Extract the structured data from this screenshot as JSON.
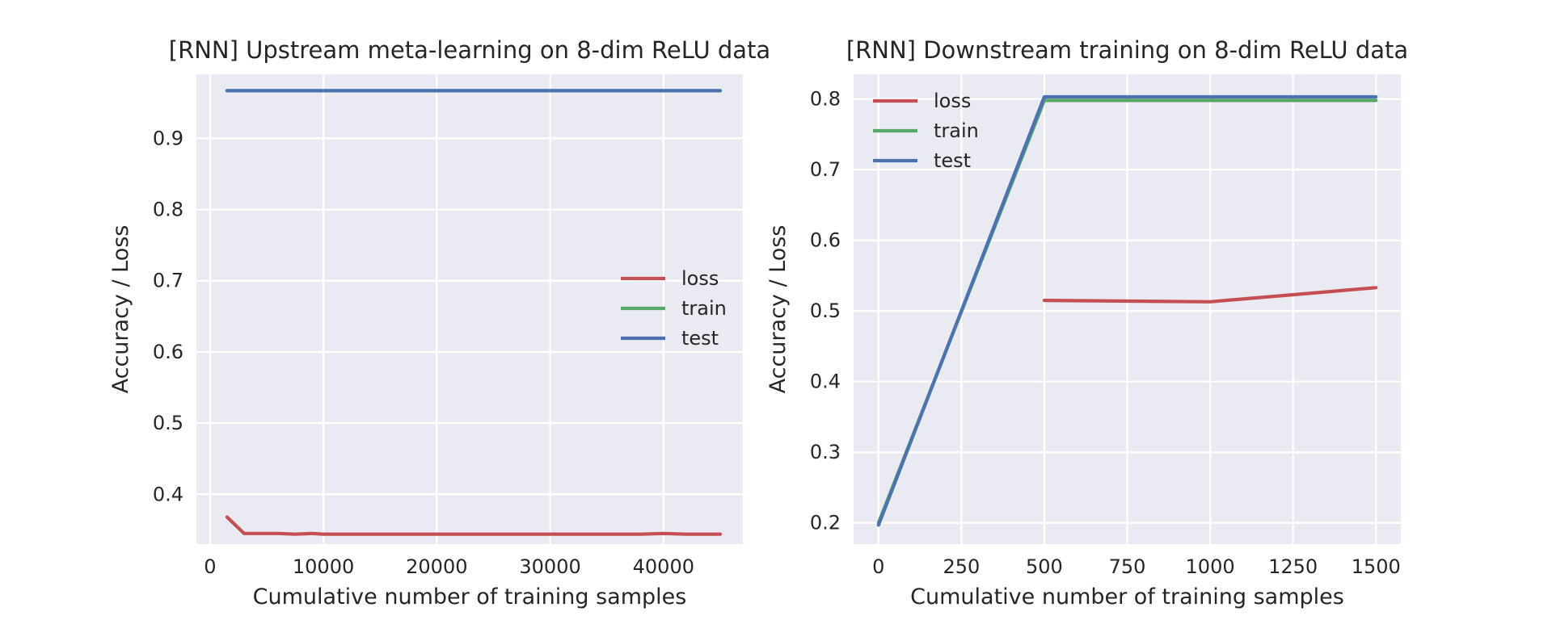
{
  "chart_data": [
    {
      "type": "line",
      "title": "[RNN] Upstream meta-learning on 8-dim ReLU data",
      "xlabel": "Cumulative number of training samples",
      "ylabel": "Accuracy / Loss",
      "xlim": [
        -1200,
        47000
      ],
      "ylim": [
        0.33,
        0.99
      ],
      "xticks": [
        0,
        10000,
        20000,
        30000,
        40000
      ],
      "xtick_labels": [
        "0",
        "10000",
        "20000",
        "30000",
        "40000"
      ],
      "yticks": [
        0.4,
        0.5,
        0.6,
        0.7,
        0.8,
        0.9
      ],
      "ytick_labels": [
        "0.4",
        "0.5",
        "0.6",
        "0.7",
        "0.8",
        "0.9"
      ],
      "grid": true,
      "legend_position": "center-right",
      "series": [
        {
          "name": "loss",
          "color": "#c44e52",
          "x": [
            1500,
            3000,
            6000,
            7500,
            9000,
            10000,
            15000,
            20000,
            25000,
            30000,
            35000,
            38000,
            40000,
            42000,
            45000
          ],
          "y": [
            0.368,
            0.345,
            0.345,
            0.344,
            0.345,
            0.344,
            0.344,
            0.344,
            0.344,
            0.344,
            0.344,
            0.344,
            0.345,
            0.344,
            0.344
          ]
        },
        {
          "name": "train",
          "color": "#55a868",
          "x": [
            1500,
            45000
          ],
          "y": [
            0.967,
            0.967
          ]
        },
        {
          "name": "test",
          "color": "#4c72b0",
          "x": [
            1500,
            45000
          ],
          "y": [
            0.967,
            0.967
          ]
        }
      ]
    },
    {
      "type": "line",
      "title": "[RNN] Downstream training on 8-dim ReLU data",
      "xlabel": "Cumulative number of training samples",
      "ylabel": "Accuracy / Loss",
      "xlim": [
        -75,
        1575
      ],
      "ylim": [
        0.17,
        0.835
      ],
      "xticks": [
        0,
        250,
        500,
        750,
        1000,
        1250,
        1500
      ],
      "xtick_labels": [
        "0",
        "250",
        "500",
        "750",
        "1000",
        "1250",
        "1500"
      ],
      "yticks": [
        0.2,
        0.3,
        0.4,
        0.5,
        0.6,
        0.7,
        0.8
      ],
      "ytick_labels": [
        "0.2",
        "0.3",
        "0.4",
        "0.5",
        "0.6",
        "0.7",
        "0.8"
      ],
      "grid": true,
      "legend_position": "upper-left",
      "series": [
        {
          "name": "loss",
          "color": "#c44e52",
          "x": [
            500,
            1000,
            1500
          ],
          "y": [
            0.515,
            0.513,
            0.533
          ]
        },
        {
          "name": "train",
          "color": "#55a868",
          "x": [
            0,
            500,
            1000,
            1500
          ],
          "y": [
            0.2,
            0.798,
            0.798,
            0.798
          ]
        },
        {
          "name": "test",
          "color": "#4c72b0",
          "x": [
            0,
            500,
            1000,
            1500
          ],
          "y": [
            0.197,
            0.803,
            0.803,
            0.803
          ]
        }
      ]
    }
  ]
}
